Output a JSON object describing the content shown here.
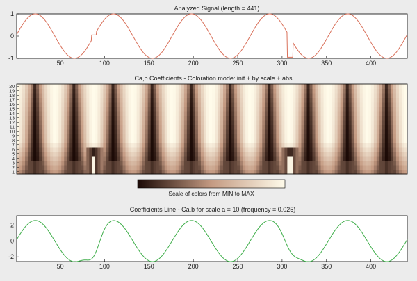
{
  "colors": {
    "background": "#ececec",
    "axes_bg": "#ffffff",
    "signal_line": "#d9705a",
    "coef_line": "#3fae4a",
    "colormap_low": "#1a0905",
    "colormap_mid": "#c49a82",
    "colormap_high": "#fffbea"
  },
  "chart_data": [
    {
      "type": "line",
      "title": "Analyzed Signal (length = 441)",
      "xlim": [
        1,
        441
      ],
      "ylim": [
        -1,
        1
      ],
      "x_ticks": [
        50,
        100,
        150,
        200,
        250,
        300,
        350,
        400
      ],
      "y_ticks": [
        -1,
        0,
        1
      ],
      "grid": false,
      "series": [
        {
          "formula": "sin(2*pi*x/88) + glitch",
          "period": 88,
          "amplitude": 1,
          "glitches": [
            {
              "center_x": 88,
              "width_x": 5,
              "value": 0.05
            },
            {
              "center_x": 309,
              "width_x": 6,
              "value": -0.95
            }
          ]
        }
      ]
    },
    {
      "type": "heatmap",
      "title": "Ca,b Coefficients - Coloration mode: init + by scale + abs",
      "xlim": [
        1,
        441
      ],
      "y_ticks": [
        1,
        2,
        3,
        4,
        5,
        6,
        7,
        8,
        9,
        10,
        11,
        12,
        13,
        14,
        15,
        16,
        17,
        18,
        19,
        20
      ],
      "scales": 20,
      "stripe_period": 44,
      "singularities_x": [
        88,
        309
      ],
      "colorbar_label": "Scale of colors from MIN to MAX"
    },
    {
      "type": "line",
      "title": "Coefficients Line - Ca,b for scale a = 10  (frequency =  0.025)",
      "scale_a": 10,
      "frequency": 0.025,
      "xlim": [
        1,
        441
      ],
      "ylim": [
        -2.6,
        3.2
      ],
      "x_ticks": [
        50,
        100,
        150,
        200,
        250,
        300,
        350,
        400
      ],
      "y_ticks": [
        -2,
        0,
        2
      ],
      "grid": false,
      "series": [
        {
          "formula": "2.6*sin(2*pi*x/88) + bumps",
          "period": 88,
          "amplitude": 2.6,
          "bumps": [
            {
              "center_x": 88,
              "width_x": 10,
              "delta": -1.9
            },
            {
              "center_x": 309,
              "width_x": 10,
              "delta": -1.1
            }
          ]
        }
      ]
    }
  ]
}
